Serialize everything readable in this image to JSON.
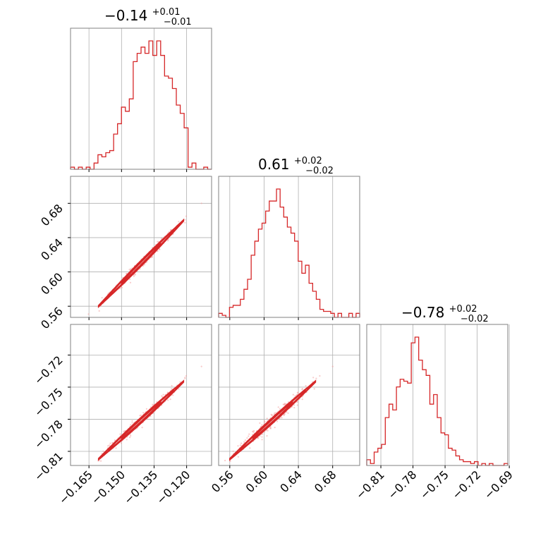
{
  "chart_data": {
    "type": "corner",
    "parameters": [
      {
        "value": "−0.14",
        "upper": "+0.01",
        "lower": "−0.01",
        "range": [
          -0.1735,
          -0.1085
        ],
        "ticks": [
          -0.165,
          -0.15,
          -0.135,
          -0.12
        ],
        "tick_labels": [
          "−0.165",
          "−0.150",
          "−0.135",
          "−0.120"
        ],
        "hist_bins": [
          1,
          0,
          1,
          0,
          1,
          0,
          3,
          7,
          6,
          8,
          9,
          17,
          22,
          30,
          28,
          34,
          52,
          56,
          59,
          56,
          62,
          55,
          62,
          55,
          45,
          44,
          39,
          31,
          27,
          20,
          1,
          3,
          0,
          0,
          1,
          0
        ]
      },
      {
        "value": "0.61",
        "upper": "+0.02",
        "lower": "−0.02",
        "range": [
          0.547,
          0.7115
        ],
        "ticks": [
          0.56,
          0.6,
          0.64,
          0.68
        ],
        "tick_labels": [
          "0.56",
          "0.60",
          "0.64",
          "0.68"
        ],
        "hist_bins": [
          2,
          1,
          0,
          5,
          6,
          6,
          9,
          14,
          19,
          31,
          38,
          44,
          47,
          53,
          58,
          58,
          64,
          55,
          50,
          45,
          42,
          38,
          28,
          22,
          26,
          17,
          13,
          9,
          4,
          3,
          3,
          2,
          0,
          2,
          0,
          0,
          2,
          0,
          2
        ]
      },
      {
        "value": "−0.78",
        "upper": "+0.02",
        "lower": "−0.02",
        "range": [
          -0.8232,
          -0.6914
        ],
        "ticks": [
          -0.81,
          -0.78,
          -0.75,
          -0.72,
          -0.69
        ],
        "tick_labels": [
          "−0.81",
          "−0.78",
          "−0.75",
          "−0.72",
          "−0.69"
        ],
        "hist_bins": [
          3,
          1,
          7,
          9,
          11,
          25,
          32,
          29,
          41,
          45,
          44,
          43,
          64,
          67,
          55,
          50,
          47,
          32,
          37,
          25,
          17,
          16,
          9,
          8,
          5,
          3,
          2,
          2,
          1,
          2,
          0,
          1,
          0,
          1,
          0,
          0,
          0,
          1
        ]
      }
    ],
    "correlation": "positive, near-linear",
    "grid": true,
    "color": "#d62728"
  }
}
